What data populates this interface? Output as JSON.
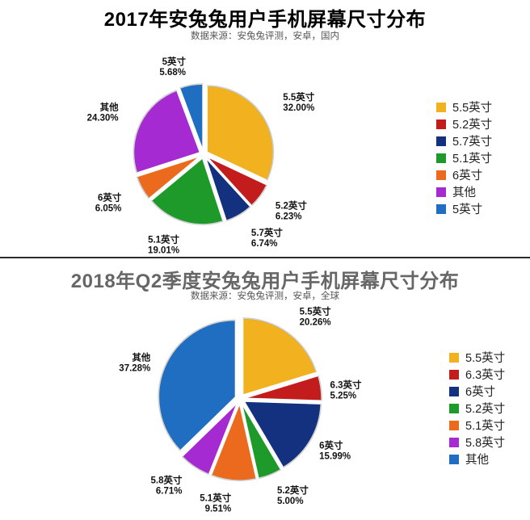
{
  "chart_data": [
    {
      "type": "pie",
      "title": "2017年安兔兔用户手机屏幕尺寸分布",
      "subtitle": "数据来源：安兔兔评测，安卓，国内",
      "legend_position": "right",
      "slices": [
        {
          "label": "5.5英寸",
          "value": 32.0,
          "display": "32.00%",
          "color": "#F2B11E"
        },
        {
          "label": "5.2英寸",
          "value": 6.23,
          "display": "6.23%",
          "color": "#C31C1C"
        },
        {
          "label": "5.7英寸",
          "value": 6.74,
          "display": "6.74%",
          "color": "#14317F"
        },
        {
          "label": "5.1英寸",
          "value": 19.01,
          "display": "19.01%",
          "color": "#1E9A2A"
        },
        {
          "label": "6英寸",
          "value": 6.05,
          "display": "6.05%",
          "color": "#EB6A1E"
        },
        {
          "label": "其他",
          "value": 24.3,
          "display": "24.30%",
          "color": "#A62AD1"
        },
        {
          "label": "5英寸",
          "value": 5.68,
          "display": "5.68%",
          "color": "#1F6EC1"
        }
      ]
    },
    {
      "type": "pie",
      "title": "2018年Q2季度安兔兔用户手机屏幕尺寸分布",
      "subtitle": "数据来源：安兔兔评测，安卓，全球",
      "legend_position": "right",
      "slices": [
        {
          "label": "5.5英寸",
          "value": 20.26,
          "display": "20.26%",
          "color": "#F2B11E"
        },
        {
          "label": "6.3英寸",
          "value": 5.25,
          "display": "5.25%",
          "color": "#C31C1C"
        },
        {
          "label": "6英寸",
          "value": 15.99,
          "display": "15.99%",
          "color": "#14317F"
        },
        {
          "label": "5.2英寸",
          "value": 5.0,
          "display": "5.00%",
          "color": "#1E9A2A"
        },
        {
          "label": "5.1英寸",
          "value": 9.51,
          "display": "9.51%",
          "color": "#EB6A1E"
        },
        {
          "label": "5.8英寸",
          "value": 6.71,
          "display": "6.71%",
          "color": "#A62AD1"
        },
        {
          "label": "其他",
          "value": 37.28,
          "display": "37.28%",
          "color": "#1F6EC1"
        }
      ]
    }
  ]
}
